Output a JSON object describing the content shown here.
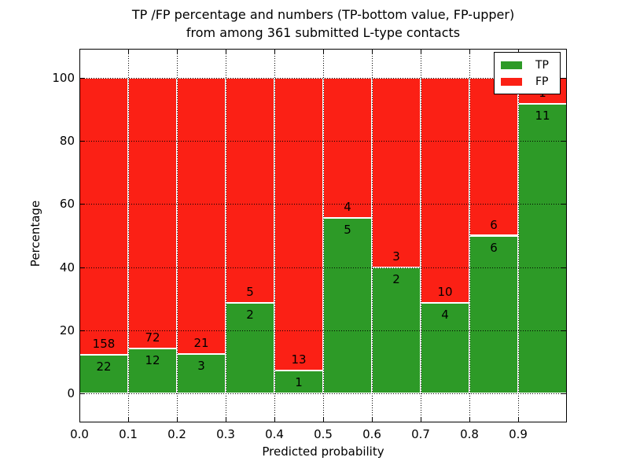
{
  "figure": {
    "title_line1": "TP /FP percentage and numbers (TP-bottom value, FP-upper)",
    "title_line2": "from among 361 submitted L-type contacts"
  },
  "chart_data": {
    "type": "bar",
    "stacked": true,
    "normalization": "each bin stacks to 100 percent; labels show raw counts",
    "title": "TP /FP percentage and numbers (TP-bottom value, FP-upper) from among 361 submitted L-type contacts",
    "xlabel": "Predicted probability",
    "ylabel": "Percentage",
    "xlim": [
      0.0,
      1.0
    ],
    "ylim": [
      -9.2,
      109.2
    ],
    "grid": true,
    "grid_style": "dotted, drawn above bars",
    "legend_position": "upper right",
    "total_contacts": 361,
    "bin_edges": [
      0.0,
      0.1,
      0.2,
      0.3,
      0.4,
      0.5,
      0.6,
      0.7,
      0.8,
      0.9,
      1.0
    ],
    "x_tick_values": [
      0.0,
      0.1,
      0.2,
      0.3,
      0.4,
      0.5,
      0.6,
      0.7,
      0.8,
      0.9
    ],
    "x_tick_labels": [
      "0.0",
      "0.1",
      "0.2",
      "0.3",
      "0.4",
      "0.5",
      "0.6",
      "0.7",
      "0.8",
      "0.9"
    ],
    "y_tick_values": [
      0,
      20,
      40,
      60,
      80,
      100
    ],
    "y_tick_labels": [
      "0",
      "20",
      "40",
      "60",
      "80",
      "100"
    ],
    "series": [
      {
        "name": "TP",
        "color": "#2d9a27",
        "counts": [
          22,
          12,
          3,
          2,
          1,
          5,
          2,
          4,
          6,
          11
        ],
        "percent": [
          12.22,
          14.29,
          12.5,
          28.57,
          7.14,
          55.56,
          40.0,
          28.57,
          50.0,
          91.67
        ]
      },
      {
        "name": "FP",
        "color": "#fb2015",
        "counts": [
          158,
          72,
          21,
          5,
          13,
          4,
          3,
          10,
          6,
          1
        ],
        "percent": [
          87.78,
          85.71,
          87.5,
          71.43,
          92.86,
          44.44,
          60.0,
          71.43,
          50.0,
          8.33
        ]
      }
    ]
  },
  "legend": {
    "entries": [
      {
        "label": "TP",
        "color": "#2d9a27"
      },
      {
        "label": "FP",
        "color": "#fb2015"
      }
    ]
  }
}
